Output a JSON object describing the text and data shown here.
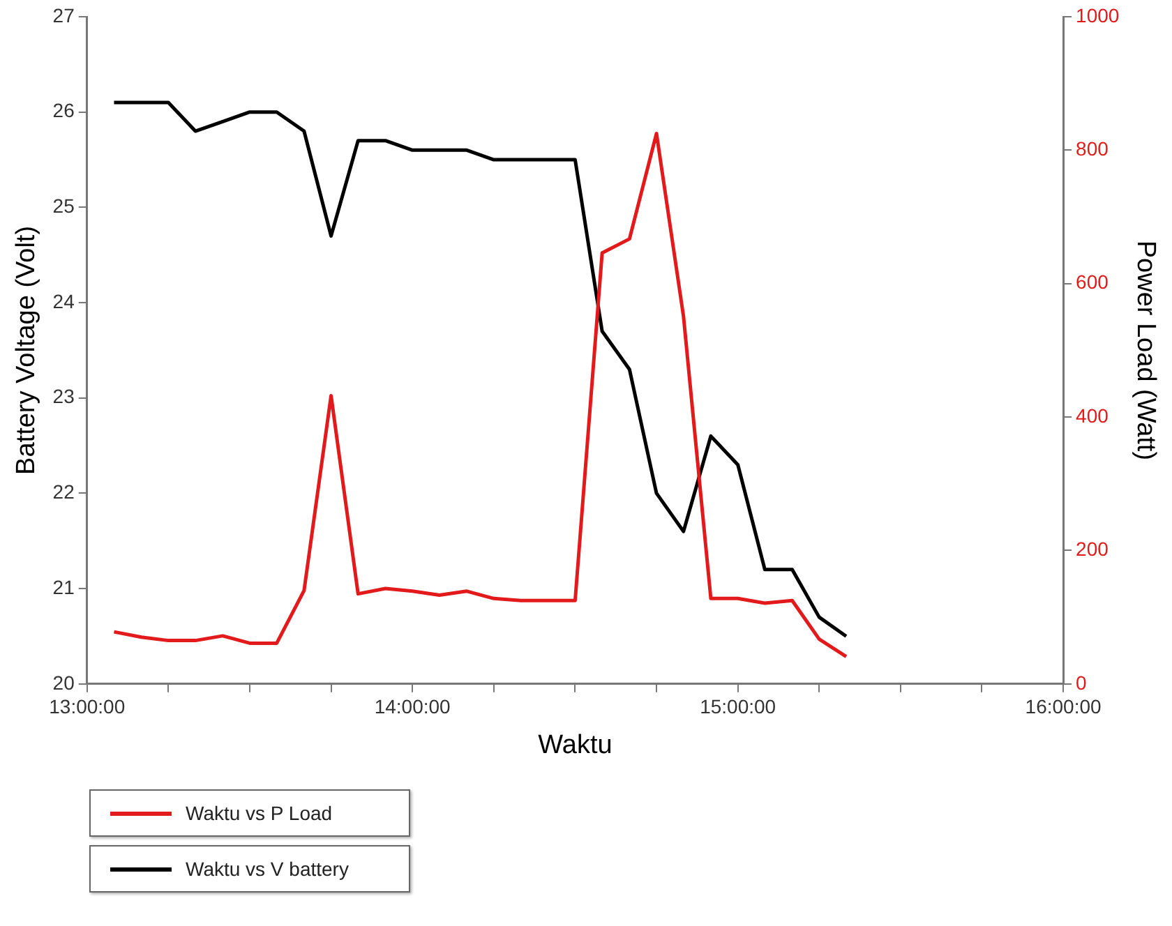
{
  "chart_data": {
    "type": "line",
    "xlabel": "Waktu",
    "ylabel": "Battery Voltage (Volt)",
    "y2label": "Power Load (Watt)",
    "x": [
      13.083,
      13.167,
      13.25,
      13.333,
      13.417,
      13.5,
      13.583,
      13.667,
      13.75,
      13.833,
      13.917,
      14,
      14.083,
      14.167,
      14.25,
      14.333,
      14.417,
      14.5,
      14.583,
      14.667,
      14.75,
      14.833,
      14.917,
      15,
      15.083,
      15.167,
      15.25,
      15.333
    ],
    "xlim": [
      13,
      16
    ],
    "xticks": [
      {
        "value": 13,
        "label": "13:00:00"
      },
      {
        "value": 13.25,
        "label": null
      },
      {
        "value": 13.5,
        "label": null
      },
      {
        "value": 13.75,
        "label": null
      },
      {
        "value": 14,
        "label": "14:00:00"
      },
      {
        "value": 14.25,
        "label": null
      },
      {
        "value": 14.5,
        "label": null
      },
      {
        "value": 14.75,
        "label": null
      },
      {
        "value": 15,
        "label": "15:00:00"
      },
      {
        "value": 15.25,
        "label": null
      },
      {
        "value": 15.5,
        "label": null
      },
      {
        "value": 15.75,
        "label": null
      },
      {
        "value": 16,
        "label": "16:00:00"
      }
    ],
    "ylim": [
      20,
      27
    ],
    "yticks": [
      20,
      21,
      22,
      23,
      24,
      25,
      26,
      27
    ],
    "y2lim": [
      0,
      1000
    ],
    "y2ticks": [
      0,
      200,
      400,
      600,
      800,
      1000
    ],
    "series": [
      {
        "name": "Waktu vs P Load",
        "color": "#e31a1c",
        "axis": "y2",
        "values": [
          78,
          70,
          65,
          65,
          72,
          61,
          61,
          140,
          432,
          135,
          143,
          139,
          133,
          139,
          128,
          125,
          125,
          125,
          646,
          667,
          825,
          551,
          128,
          128,
          121,
          125,
          67,
          41
        ]
      },
      {
        "name": "Waktu vs V battery",
        "color": "#000000",
        "axis": "y",
        "values": [
          26.1,
          26.1,
          26.1,
          25.8,
          25.9,
          26.0,
          26.0,
          25.8,
          24.7,
          25.7,
          25.7,
          25.6,
          25.6,
          25.6,
          25.5,
          25.5,
          25.5,
          25.5,
          23.7,
          23.3,
          22.0,
          21.6,
          22.6,
          22.3,
          21.2,
          21.2,
          20.7,
          20.5
        ]
      }
    ],
    "legend": "bottom left"
  }
}
